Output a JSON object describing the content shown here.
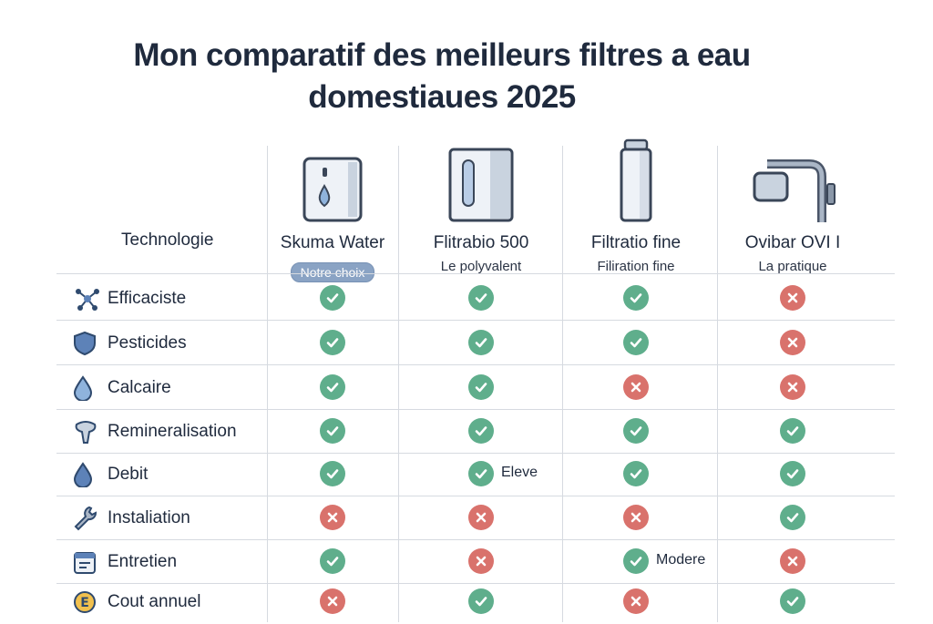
{
  "title_line1": "Mon comparatif des meilleurs filtres a eau",
  "title_line2": "domestiaues 2025",
  "tech_header": "Technologie",
  "products": [
    {
      "name": "Skuma Water",
      "sub": "Notre choix",
      "badge": true,
      "icon": "water-dispenser-icon"
    },
    {
      "name": "Flitrabio 500",
      "sub": "Le polyvalent",
      "badge": false,
      "icon": "filter-box-icon"
    },
    {
      "name": "Filtratio fine",
      "sub": "Filiration fine",
      "badge": false,
      "icon": "filter-cartridge-icon"
    },
    {
      "name": "Ovibar OVI I",
      "sub": "La pratique",
      "badge": false,
      "icon": "faucet-filter-icon"
    }
  ],
  "rows": [
    {
      "label": "Efficaciste",
      "icon": "molecule-icon",
      "values": [
        "yes",
        "yes",
        "yes",
        "no"
      ],
      "notes": [
        "",
        "",
        "",
        ""
      ]
    },
    {
      "label": "Pesticides",
      "icon": "shield-icon",
      "values": [
        "yes",
        "yes",
        "yes",
        "no"
      ],
      "notes": [
        "",
        "",
        "",
        ""
      ]
    },
    {
      "label": "Calcaire",
      "icon": "water-drop-icon",
      "values": [
        "yes",
        "yes",
        "no",
        "no"
      ],
      "notes": [
        "",
        "",
        "",
        ""
      ]
    },
    {
      "label": "Remineralisation",
      "icon": "tooth-icon",
      "values": [
        "yes",
        "yes",
        "yes",
        "yes"
      ],
      "notes": [
        "",
        "",
        "",
        ""
      ]
    },
    {
      "label": "Debit",
      "icon": "drop-icon",
      "values": [
        "yes",
        "yes",
        "yes",
        "yes"
      ],
      "notes": [
        "",
        "Eleve",
        "",
        ""
      ]
    },
    {
      "label": "Instaliation",
      "icon": "wrench-icon",
      "values": [
        "no",
        "no",
        "no",
        "yes"
      ],
      "notes": [
        "",
        "",
        "",
        ""
      ]
    },
    {
      "label": "Entretien",
      "icon": "calendar-icon",
      "values": [
        "yes",
        "no",
        "yes",
        "no"
      ],
      "notes": [
        "",
        "",
        "Modere",
        ""
      ]
    },
    {
      "label": "Cout annuel",
      "icon": "euro-coin-icon",
      "values": [
        "no",
        "yes",
        "no",
        "yes"
      ],
      "notes": [
        "",
        "",
        "",
        ""
      ]
    }
  ]
}
